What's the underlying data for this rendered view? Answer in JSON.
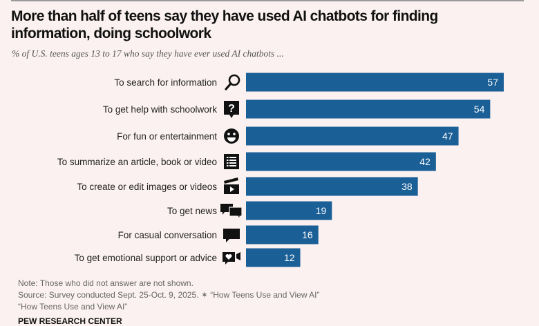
{
  "header": {
    "title": "More than half of teens say they have used AI chatbots for finding information, doing schoolwork",
    "subtitle": "% of U.S. teens ages 13 to 17 who say they have ever used AI chatbots ..."
  },
  "chart_data": {
    "type": "bar",
    "orientation": "horizontal",
    "categories": [
      "To search for information",
      "To get help with schoolwork",
      "For fun or entertainment",
      "To summarize an article, book or video",
      "To create or edit images or videos",
      "To get news",
      "For casual conversation",
      "To get emotional support or advice"
    ],
    "icons": [
      "magnifier-icon",
      "question-bubble-icon",
      "smiley-icon",
      "list-icon",
      "clapperboard-icon",
      "speech-bubbles-icon",
      "chat-bubble-icon",
      "heart-video-icon"
    ],
    "values": [
      57,
      54,
      47,
      42,
      38,
      19,
      16,
      12
    ],
    "bar_color": "#1b5f97",
    "label_color": "#ffffff",
    "xlim": [
      0,
      57
    ],
    "grid": false,
    "title": "More than half of teens say they have used AI chatbots for finding information, doing schoolwork"
  },
  "footer": {
    "note": "Note: Those who did not answer are not shown.",
    "source": "Source: Survey conducted Sept. 25-Oct. 9, 2025. ✶ “How Teens Use and View AI”",
    "source2": "“How Teens Use and View AI”",
    "brand": "PEW RESEARCH CENTER"
  }
}
